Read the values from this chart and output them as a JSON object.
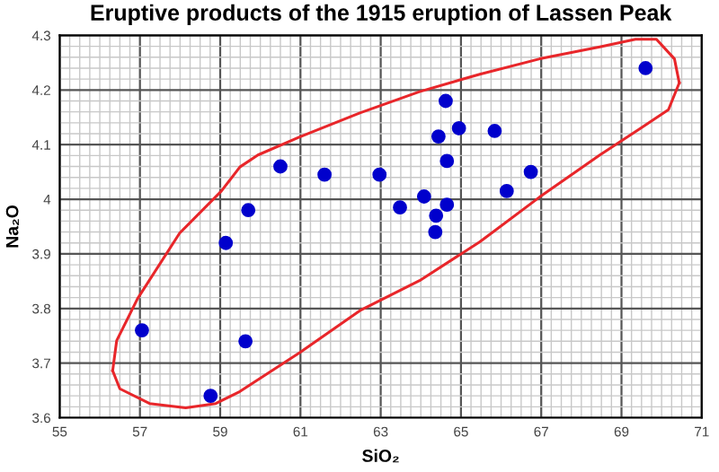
{
  "chart_data": {
    "type": "scatter",
    "title": "Eruptive products of the 1915 eruption of Lassen Peak",
    "xlabel": "SiO₂",
    "ylabel": "Na₂O",
    "x": [
      57.05,
      58.76,
      59.63,
      59.14,
      59.7,
      60.5,
      61.6,
      62.97,
      63.48,
      64.08,
      64.36,
      64.38,
      64.44,
      64.62,
      64.65,
      64.65,
      64.95,
      65.84,
      66.14,
      66.74,
      69.6
    ],
    "series": [
      {
        "type": "line",
        "color": "#e8262a",
        "marker": "none",
        "x": [
          56.32,
          56.42,
          56.94,
          57.99,
          59.03,
          59.49,
          59.94,
          60.98,
          62.48,
          63.97,
          65.47,
          66.96,
          68.46,
          69.35,
          69.87,
          70.32,
          70.44
        ],
        "values": [
          3.686,
          3.741,
          3.818,
          3.938,
          4.015,
          4.059,
          4.081,
          4.114,
          4.158,
          4.197,
          4.229,
          4.257,
          4.279,
          4.293,
          4.293,
          4.257,
          4.213
        ]
      },
      {
        "type": "line",
        "color": "#e8262a",
        "marker": "none",
        "x": [
          56.32,
          56.5,
          57.24,
          58.14,
          58.89,
          59.49,
          60.98,
          62.48,
          63.97,
          65.47,
          66.96,
          68.46,
          69.5,
          70.17,
          70.44
        ],
        "values": [
          3.686,
          3.653,
          3.626,
          3.618,
          3.626,
          3.648,
          3.719,
          3.796,
          3.851,
          3.922,
          4.004,
          4.081,
          4.131,
          4.164,
          4.213
        ]
      },
      {
        "color": "#0000cc",
        "values": [
          3.76,
          3.64,
          3.74,
          3.92,
          3.98,
          4.06,
          4.045,
          4.045,
          3.985,
          4.005,
          3.94,
          3.97,
          4.115,
          4.18,
          4.07,
          3.99,
          4.13,
          4.125,
          4.015,
          4.05,
          4.24
        ]
      }
    ],
    "xlim": [
      55,
      71
    ],
    "ylim": [
      3.6,
      4.3
    ],
    "xticks": [
      55,
      57,
      59,
      61,
      63,
      65,
      67,
      69,
      71
    ],
    "yticks": [
      3.6,
      3.7,
      3.8,
      3.9,
      {
        "value": 4.0,
        "label": "4"
      },
      4.1,
      4.2,
      4.3
    ],
    "grid": true,
    "marker": "circle"
  }
}
